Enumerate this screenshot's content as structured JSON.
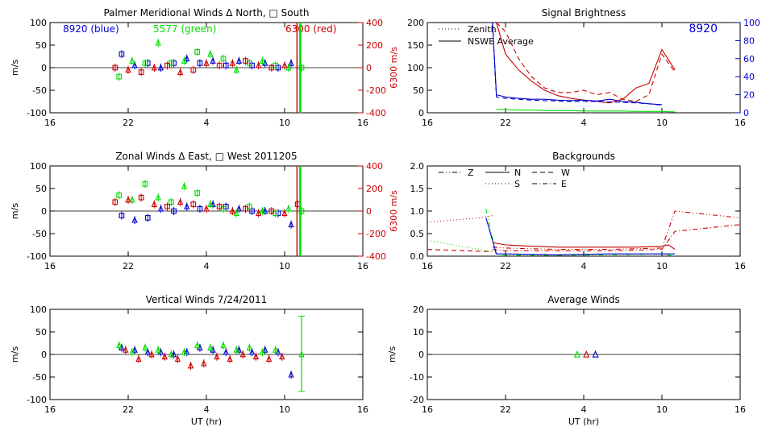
{
  "colors": {
    "blue": "#0000cc",
    "green": "#00dd00",
    "red": "#cc0000",
    "axis": "#000000"
  },
  "x_ticks": [
    "16",
    "22",
    "4",
    "10",
    "16"
  ],
  "xlabel": "UT (hr)",
  "chart_data": [
    {
      "id": "meridional",
      "type": "scatter",
      "title": "Palmer Meridional Winds Δ North, □ South",
      "ylabel": "m/s",
      "ylim": [
        -100,
        100
      ],
      "y_ticks": [
        "100",
        "50",
        "0",
        "-50",
        "-100"
      ],
      "right_axis": {
        "label": "6300 m/s",
        "ylim": [
          -400,
          400
        ],
        "ticks": [
          "400",
          "200",
          "0",
          "-200",
          "-400"
        ]
      },
      "annotations": [
        {
          "text": "8920 (blue)",
          "color": "blue"
        },
        {
          "text": "5577 (green)",
          "color": "green"
        },
        {
          "text": "6300 (red)",
          "color": "red"
        }
      ],
      "series": [
        {
          "name": "8920 (blue)",
          "color": "blue",
          "marker": "mixed",
          "x": [
            21.5,
            22.5,
            23.5,
            24.5,
            25.5,
            26.5,
            27.5,
            28.5,
            29.5,
            30.5,
            31.5,
            32.5,
            33.5,
            34.5
          ],
          "y": [
            30,
            5,
            10,
            0,
            10,
            20,
            10,
            15,
            5,
            15,
            5,
            10,
            0,
            10
          ]
        },
        {
          "name": "5577 (green)",
          "color": "green",
          "marker": "mixed",
          "x": [
            21.3,
            22.3,
            23.3,
            24.3,
            25.3,
            26.3,
            27.3,
            28.3,
            29.3,
            30.3,
            31.3,
            32.3,
            33.3,
            34.3,
            35.3
          ],
          "y": [
            -20,
            15,
            10,
            55,
            10,
            15,
            35,
            30,
            20,
            -5,
            10,
            15,
            5,
            0,
            0
          ]
        },
        {
          "name": "6300 (red)",
          "color": "red",
          "marker": "mixed",
          "x": [
            21,
            22,
            23,
            24,
            25,
            26,
            27,
            28,
            29,
            30,
            31,
            32,
            33,
            34
          ],
          "y": [
            0,
            -5,
            -10,
            0,
            5,
            -10,
            -5,
            10,
            5,
            10,
            15,
            5,
            0,
            5
          ]
        }
      ]
    },
    {
      "id": "zonal",
      "type": "scatter",
      "title": "Zonal Winds Δ East, □ West 2011205",
      "ylabel": "m/s",
      "ylim": [
        -100,
        100
      ],
      "y_ticks": [
        "100",
        "50",
        "0",
        "-50",
        "-100"
      ],
      "right_axis": {
        "label": "6300 m/s",
        "ylim": [
          -400,
          400
        ],
        "ticks": [
          "400",
          "200",
          "0",
          "-200",
          "-400"
        ]
      },
      "series": [
        {
          "color": "blue",
          "marker": "mixed",
          "x": [
            21.5,
            22.5,
            23.5,
            24.5,
            25.5,
            26.5,
            27.5,
            28.5,
            29.5,
            30.5,
            31.5,
            32.5,
            33.5,
            34.5
          ],
          "y": [
            -10,
            -20,
            -15,
            5,
            0,
            10,
            5,
            15,
            10,
            5,
            0,
            0,
            -5,
            -30
          ]
        },
        {
          "color": "green",
          "marker": "mixed",
          "x": [
            21.3,
            22.3,
            23.3,
            24.3,
            25.3,
            26.3,
            27.3,
            28.3,
            29.3,
            30.3,
            31.3,
            32.3,
            33.3,
            34.3,
            35.3
          ],
          "y": [
            35,
            25,
            60,
            30,
            20,
            55,
            40,
            15,
            5,
            -5,
            10,
            0,
            -5,
            5,
            0
          ]
        },
        {
          "color": "red",
          "marker": "mixed",
          "x": [
            21,
            22,
            23,
            24,
            25,
            26,
            27,
            28,
            29,
            30,
            31,
            32,
            33,
            34,
            35
          ],
          "y": [
            20,
            25,
            30,
            15,
            10,
            20,
            15,
            5,
            10,
            0,
            5,
            -5,
            0,
            -5,
            15
          ]
        }
      ]
    },
    {
      "id": "vertical",
      "type": "scatter",
      "title": "Vertical Winds 7/24/2011",
      "ylabel": "m/s",
      "ylim": [
        -100,
        100
      ],
      "y_ticks": [
        "100",
        "50",
        "0",
        "-50",
        "-100"
      ],
      "series": [
        {
          "color": "blue",
          "marker": "triangle",
          "x": [
            21.5,
            22.5,
            23.5,
            24.5,
            25.5,
            26.5,
            27.5,
            28.5,
            29.5,
            30.5,
            31.5,
            32.5,
            33.5,
            34.5
          ],
          "y": [
            15,
            10,
            5,
            5,
            0,
            5,
            15,
            10,
            5,
            10,
            5,
            10,
            5,
            -45
          ]
        },
        {
          "color": "green",
          "marker": "triangle",
          "x": [
            21.3,
            22.3,
            23.3,
            24.3,
            25.3,
            26.3,
            27.3,
            28.3,
            29.3,
            30.3,
            31.3,
            32.3,
            33.3,
            35.3
          ],
          "y": [
            20,
            5,
            15,
            10,
            0,
            5,
            20,
            15,
            20,
            10,
            15,
            5,
            10,
            0
          ]
        },
        {
          "color": "red",
          "marker": "triangle",
          "x": [
            21.8,
            22.8,
            23.8,
            24.8,
            25.8,
            26.8,
            27.8,
            28.8,
            29.8,
            30.8,
            31.8,
            32.8,
            33.8
          ],
          "y": [
            10,
            -10,
            0,
            -5,
            -10,
            -25,
            -20,
            -5,
            -10,
            0,
            -5,
            -10,
            -5
          ]
        }
      ]
    },
    {
      "id": "signal",
      "type": "line",
      "title": "Signal Brightness",
      "ylim": [
        0,
        200
      ],
      "y_ticks": [
        "200",
        "150",
        "100",
        "50",
        "0"
      ],
      "right_axis": {
        "label": "",
        "ylim": [
          0,
          100
        ],
        "ticks": [
          "100",
          "80",
          "60",
          "40",
          "20",
          "0"
        ]
      },
      "annotations": [
        {
          "text": "8920",
          "color": "blue"
        }
      ],
      "legend": [
        {
          "text": "Zenith",
          "style": "dotted"
        },
        {
          "text": "NSWE Average",
          "style": "solid"
        }
      ],
      "series": [
        {
          "color": "red",
          "style": "solid",
          "x": [
            21.3,
            22,
            23,
            24,
            25,
            26,
            27,
            28,
            29,
            30,
            31,
            32,
            33,
            34,
            35
          ],
          "y": [
            200,
            130,
            95,
            70,
            50,
            38,
            32,
            28,
            25,
            22,
            30,
            55,
            65,
            140,
            95
          ]
        },
        {
          "color": "red",
          "style": "dashed",
          "x": [
            21.3,
            22,
            23,
            24,
            25,
            26,
            27,
            28,
            29,
            30,
            31,
            32,
            33,
            34,
            35
          ],
          "y": [
            200,
            180,
            120,
            80,
            55,
            45,
            45,
            50,
            40,
            45,
            30,
            25,
            40,
            130,
            90
          ]
        },
        {
          "color": "blue",
          "style": "solid",
          "x": [
            21,
            21.3,
            22,
            23,
            24,
            25,
            26,
            27,
            28,
            29,
            30,
            31,
            32,
            33,
            34
          ],
          "y": [
            200,
            40,
            35,
            32,
            30,
            30,
            28,
            27,
            28,
            26,
            30,
            25,
            23,
            20,
            18
          ]
        },
        {
          "color": "blue",
          "style": "dashed",
          "x": [
            21,
            21.3,
            22,
            23,
            24,
            25,
            26,
            27,
            28,
            29,
            30,
            31,
            32,
            33,
            34
          ],
          "y": [
            200,
            35,
            32,
            30,
            28,
            27,
            26,
            25,
            25,
            25,
            24,
            23,
            22,
            20,
            17
          ]
        },
        {
          "color": "green",
          "style": "solid",
          "x": [
            21.3,
            22,
            23,
            24,
            25,
            26,
            27,
            28,
            29,
            30,
            31,
            32,
            33,
            34,
            35
          ],
          "y": [
            8,
            7,
            6,
            6,
            5,
            5,
            5,
            4,
            4,
            4,
            4,
            3,
            3,
            3,
            2
          ]
        }
      ]
    },
    {
      "id": "backgrounds",
      "type": "line",
      "title": "Backgrounds",
      "ylim": [
        0,
        2
      ],
      "y_ticks": [
        "2.0",
        "1.5",
        "1.0",
        "0.5",
        "0.0"
      ],
      "legend": [
        {
          "text": "Z",
          "style": "dashdotdot"
        },
        {
          "text": "N",
          "style": "solid"
        },
        {
          "text": "W",
          "style": "dashed"
        },
        {
          "text": "S",
          "style": "dotted"
        },
        {
          "text": "E",
          "style": "dashdot"
        }
      ],
      "series": [
        {
          "color": "red",
          "style": "dotted",
          "x": [
            16,
            20,
            21
          ],
          "y": [
            0.75,
            0.85,
            0.9
          ]
        },
        {
          "color": "red",
          "style": "dashed",
          "x": [
            16,
            21
          ],
          "y": [
            0.15,
            0.1
          ]
        },
        {
          "color": "red",
          "style": "solid",
          "x": [
            21,
            22,
            24,
            26,
            28,
            30,
            32,
            34,
            34.5,
            35
          ],
          "y": [
            0.3,
            0.25,
            0.22,
            0.2,
            0.2,
            0.2,
            0.2,
            0.22,
            0.25,
            0.15
          ]
        },
        {
          "color": "red",
          "style": "dashdotdot",
          "x": [
            21,
            22,
            26,
            30,
            34,
            35,
            40
          ],
          "y": [
            0.2,
            0.18,
            0.15,
            0.15,
            0.18,
            1.0,
            0.85
          ]
        },
        {
          "color": "red",
          "style": "dashdot",
          "x": [
            21,
            22,
            26,
            30,
            34,
            35,
            40
          ],
          "y": [
            0.15,
            0.12,
            0.12,
            0.12,
            0.15,
            0.55,
            0.7
          ]
        },
        {
          "color": "green",
          "style": "dotted",
          "x": [
            16,
            21
          ],
          "y": [
            0.35,
            0.1
          ]
        },
        {
          "color": "green",
          "style": "dashdotdot",
          "x": [
            20.5,
            21.3,
            22,
            26,
            30,
            34,
            35
          ],
          "y": [
            1.05,
            0.0,
            0.02,
            0.02,
            0.03,
            0.05,
            0.0
          ]
        },
        {
          "color": "blue",
          "style": "solid",
          "x": [
            20.5,
            21.3,
            22,
            26,
            30,
            34,
            35
          ],
          "y": [
            0.85,
            0.05,
            0.05,
            0.03,
            0.05,
            0.05,
            0.05
          ]
        }
      ]
    },
    {
      "id": "average",
      "type": "scatter",
      "title": "Average Winds",
      "ylabel": "m/s",
      "ylim": [
        -20,
        20
      ],
      "y_ticks": [
        "20",
        "10",
        "0",
        "-10",
        "-20"
      ],
      "series": [
        {
          "color": "green",
          "marker": "triangle",
          "x": [
            27.5
          ],
          "y": [
            0
          ]
        },
        {
          "color": "red",
          "marker": "triangle",
          "x": [
            28.2
          ],
          "y": [
            0
          ]
        },
        {
          "color": "blue",
          "marker": "triangle",
          "x": [
            28.9
          ],
          "y": [
            0
          ]
        }
      ]
    }
  ]
}
